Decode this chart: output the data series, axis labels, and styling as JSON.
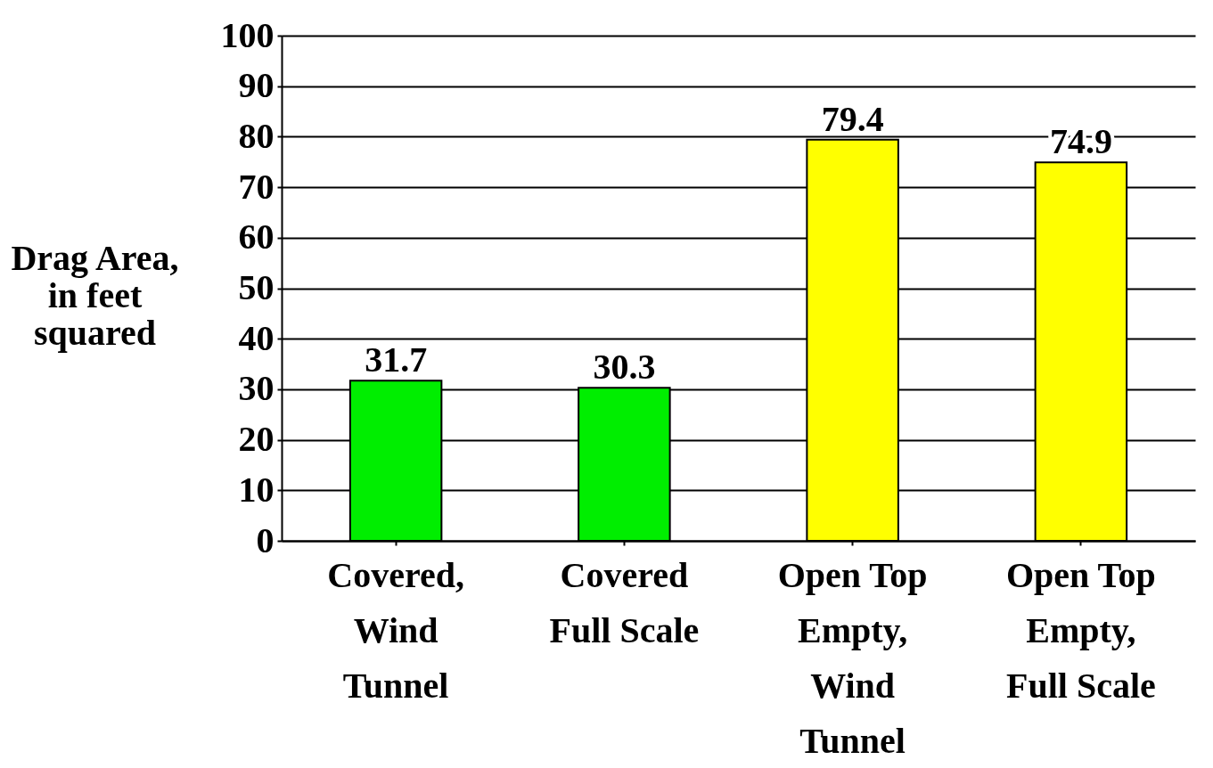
{
  "chart_data": {
    "type": "bar",
    "ylabel": "Drag Area,\nin feet\nsquared",
    "categories": [
      "Covered,\nWind\nTunnel",
      "Covered\nFull Scale",
      "Open Top\nEmpty,\nWind\nTunnel",
      "Open Top\nEmpty,\nFull Scale"
    ],
    "values": [
      31.7,
      30.3,
      79.4,
      74.9
    ],
    "colors": [
      "#00ee00",
      "#00ee00",
      "#ffff00",
      "#ffff00"
    ],
    "ylim": [
      0,
      100
    ],
    "yticks": [
      0,
      10,
      20,
      30,
      40,
      50,
      60,
      70,
      80,
      90,
      100
    ],
    "grid": "y",
    "data_labels": true
  }
}
